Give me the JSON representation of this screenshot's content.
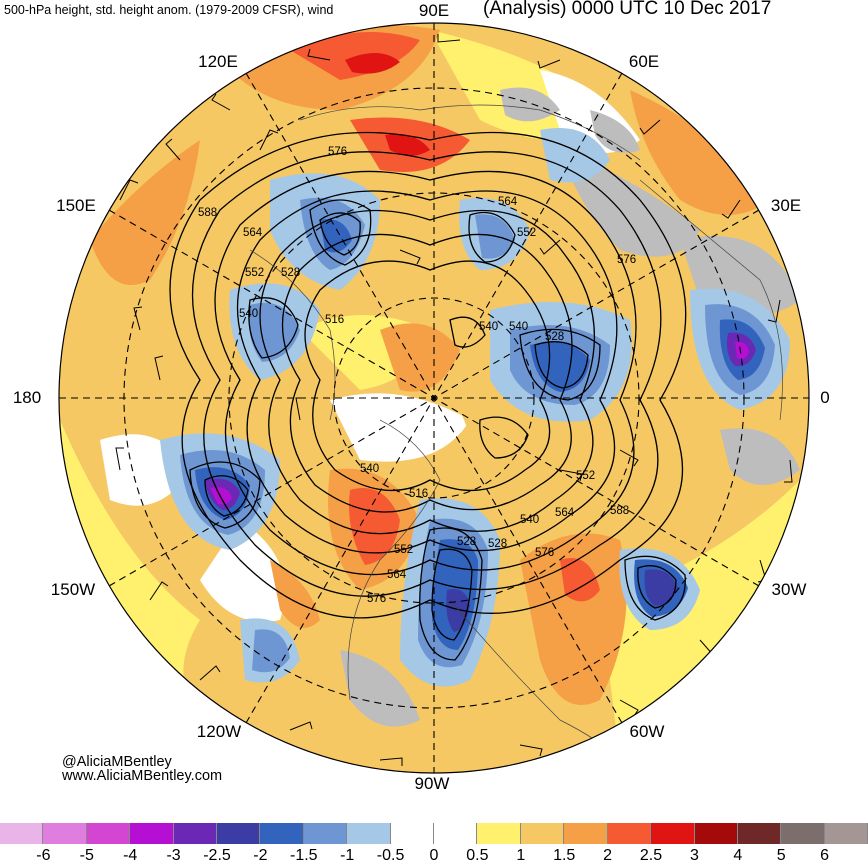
{
  "header": {
    "left": "500-hPa height, std. height anom. (1979-2009 CFSR), wind",
    "right": "(Analysis) 0000 UTC 10 Dec 2017"
  },
  "longitude_labels": {
    "e90": "90E",
    "e60": "60E",
    "e120": "120E",
    "e150": "150E",
    "e30": "30E",
    "lon180": "180",
    "lon0": "0",
    "w150": "150W",
    "w30": "30W",
    "w120": "120W",
    "w60": "60W",
    "w90": "90W"
  },
  "contour_labels": [
    "576",
    "588",
    "564",
    "552",
    "528",
    "540",
    "516",
    "564",
    "552",
    "528",
    "540",
    "576",
    "528",
    "552",
    "540",
    "564",
    "588",
    "576",
    "540",
    "516",
    "552",
    "528",
    "564",
    "576",
    "540"
  ],
  "credits": {
    "handle": "@AliciaMBentley",
    "site": "www.AliciaMBentley.com"
  },
  "colorbar": {
    "labels": [
      "-6",
      "-5",
      "-4",
      "-3",
      "-2.5",
      "-2",
      "-1.5",
      "-1",
      "-0.5",
      "0",
      "0.5",
      "1",
      "1.5",
      "2",
      "2.5",
      "3",
      "4",
      "5",
      "6"
    ],
    "colors": [
      "#e9b5e9",
      "#e07ee0",
      "#d246d2",
      "#b40fd2",
      "#6a28b4",
      "#3c3ca5",
      "#3264be",
      "#6e96d2",
      "#a5c8e6",
      "#ffffff",
      "#ffffff",
      "#fff06e",
      "#f5c864",
      "#f5a046",
      "#f55a32",
      "#e11414",
      "#a50a0a",
      "#6e2828",
      "#7d6e6e",
      "#a59696"
    ]
  },
  "colors": {
    "ocean_land_base": "#f5c864",
    "accent_positive": "#f5a046",
    "accent_negative": "#3264be"
  }
}
